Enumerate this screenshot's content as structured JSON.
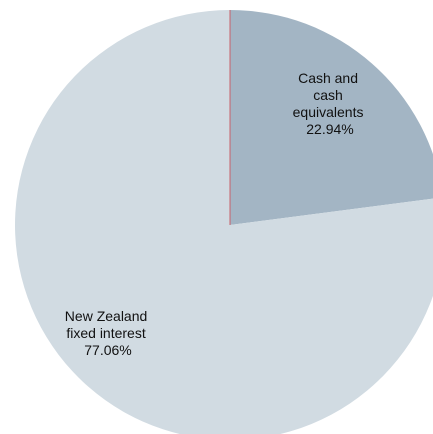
{
  "chart_data": {
    "type": "pie",
    "slices": [
      {
        "label_lines": [
          "Cash and",
          "cash",
          "equivalents"
        ],
        "value": 22.94,
        "value_label": "22.94%",
        "color": "#a3b5c4"
      },
      {
        "label_lines": [
          "New Zealand",
          "fixed interest"
        ],
        "value": 77.06,
        "value_label": "77.06%",
        "color": "#d1dbe2"
      }
    ],
    "start_angle": "12 o'clock",
    "direction": "clockwise",
    "separator_color": "#c8606a"
  }
}
